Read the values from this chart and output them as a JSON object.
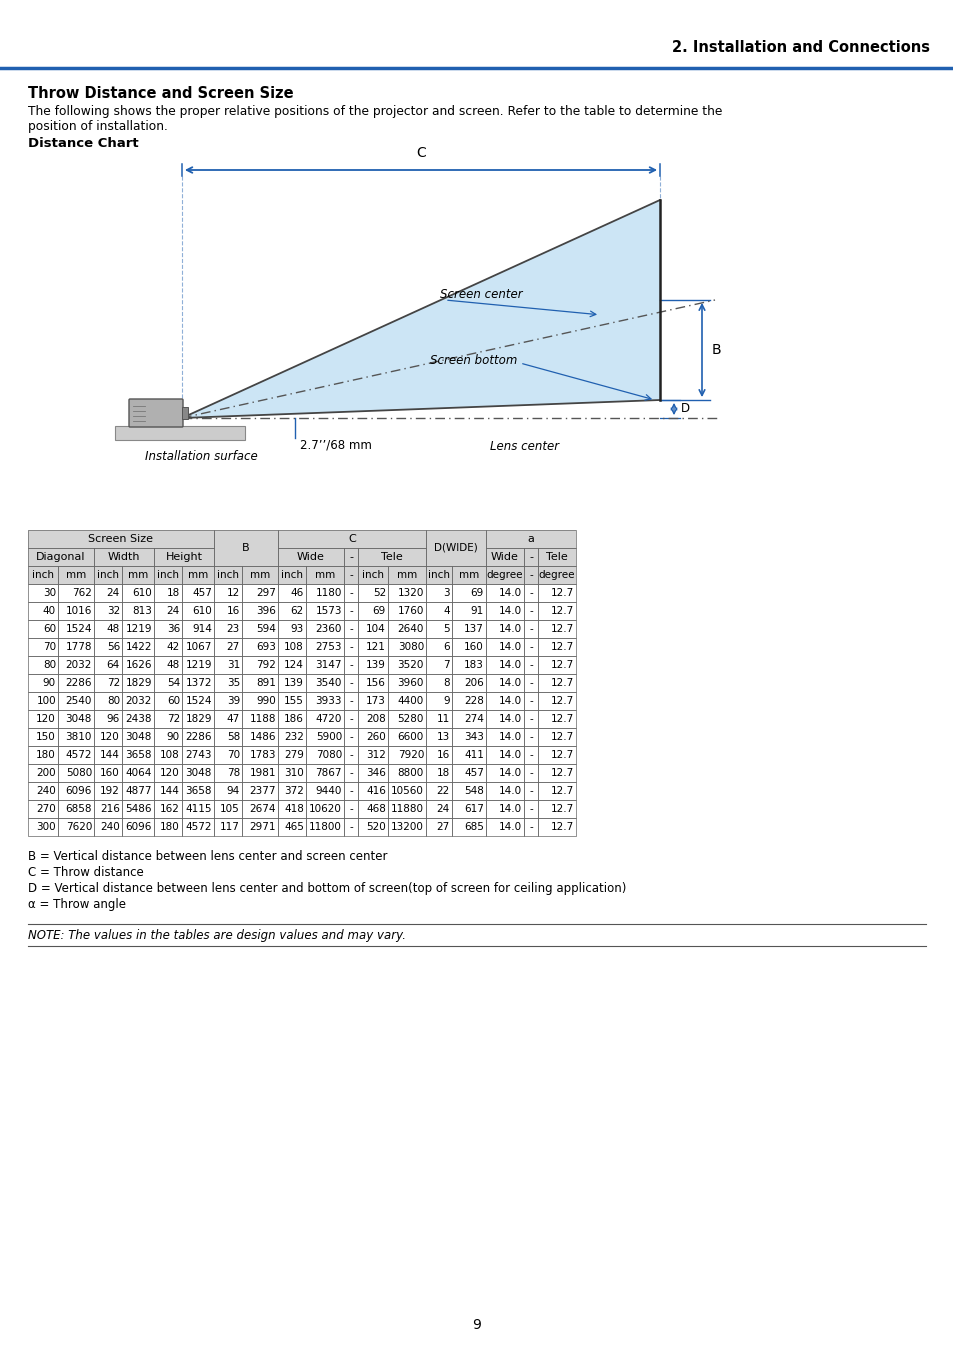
{
  "page_title": "2. Installation and Connections",
  "section_title": "Throw Distance and Screen Size",
  "intro_line1": "The following shows the proper relative positions of the projector and screen. Refer to the table to determine the",
  "intro_line2": "position of installation.",
  "subsection_title": "Distance Chart",
  "note_text": "NOTE: The values in the tables are design values and may vary.",
  "legend_lines": [
    "B = Vertical distance between lens center and screen center",
    "C = Throw distance",
    "D = Vertical distance between lens center and bottom of screen(top of screen for ceiling application)",
    "α = Throw angle"
  ],
  "table_data": [
    [
      30,
      762,
      24,
      610,
      18,
      457,
      12,
      297,
      46,
      1180,
      "-",
      52,
      1320,
      3,
      69,
      "14.0",
      "-",
      "12.7"
    ],
    [
      40,
      1016,
      32,
      813,
      24,
      610,
      16,
      396,
      62,
      1573,
      "-",
      69,
      1760,
      4,
      91,
      "14.0",
      "-",
      "12.7"
    ],
    [
      60,
      1524,
      48,
      1219,
      36,
      914,
      23,
      594,
      93,
      2360,
      "-",
      104,
      2640,
      5,
      137,
      "14.0",
      "-",
      "12.7"
    ],
    [
      70,
      1778,
      56,
      1422,
      42,
      1067,
      27,
      693,
      108,
      2753,
      "-",
      121,
      3080,
      6,
      160,
      "14.0",
      "-",
      "12.7"
    ],
    [
      80,
      2032,
      64,
      1626,
      48,
      1219,
      31,
      792,
      124,
      3147,
      "-",
      139,
      3520,
      7,
      183,
      "14.0",
      "-",
      "12.7"
    ],
    [
      90,
      2286,
      72,
      1829,
      54,
      1372,
      35,
      891,
      139,
      3540,
      "-",
      156,
      3960,
      8,
      206,
      "14.0",
      "-",
      "12.7"
    ],
    [
      100,
      2540,
      80,
      2032,
      60,
      1524,
      39,
      990,
      155,
      3933,
      "-",
      173,
      4400,
      9,
      228,
      "14.0",
      "-",
      "12.7"
    ],
    [
      120,
      3048,
      96,
      2438,
      72,
      1829,
      47,
      1188,
      186,
      4720,
      "-",
      208,
      5280,
      11,
      274,
      "14.0",
      "-",
      "12.7"
    ],
    [
      150,
      3810,
      120,
      3048,
      90,
      2286,
      58,
      1486,
      232,
      5900,
      "-",
      260,
      6600,
      13,
      343,
      "14.0",
      "-",
      "12.7"
    ],
    [
      180,
      4572,
      144,
      3658,
      108,
      2743,
      70,
      1783,
      279,
      7080,
      "-",
      312,
      7920,
      16,
      411,
      "14.0",
      "-",
      "12.7"
    ],
    [
      200,
      5080,
      160,
      4064,
      120,
      3048,
      78,
      1981,
      310,
      7867,
      "-",
      346,
      8800,
      18,
      457,
      "14.0",
      "-",
      "12.7"
    ],
    [
      240,
      6096,
      192,
      4877,
      144,
      3658,
      94,
      2377,
      372,
      9440,
      "-",
      416,
      10560,
      22,
      548,
      "14.0",
      "-",
      "12.7"
    ],
    [
      270,
      6858,
      216,
      5486,
      162,
      4115,
      105,
      2674,
      418,
      10620,
      "-",
      468,
      11880,
      24,
      617,
      "14.0",
      "-",
      "12.7"
    ],
    [
      300,
      7620,
      240,
      6096,
      180,
      4572,
      117,
      2971,
      465,
      11800,
      "-",
      520,
      13200,
      27,
      685,
      "14.0",
      "-",
      "12.7"
    ]
  ],
  "header_bg": "#d4d4d4",
  "blue_color": "#2060b0",
  "light_blue": "#cce5f5",
  "dark_line": "#333333",
  "page_number": "9"
}
